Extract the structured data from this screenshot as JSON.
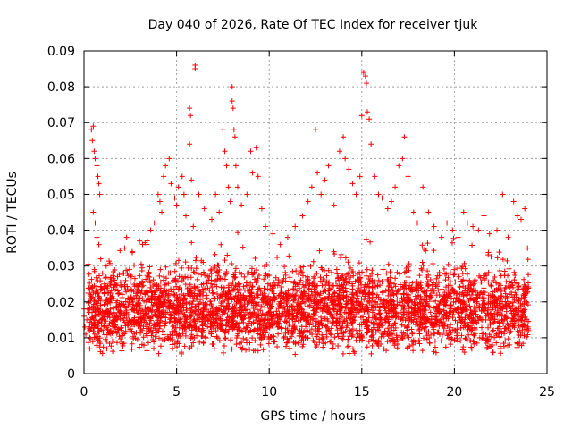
{
  "chart_data": {
    "type": "scatter",
    "title": "Day 040 of 2026, Rate Of TEC Index for receiver tjuk",
    "xlabel": "GPS time / hours",
    "ylabel": "ROTI / TECUs",
    "xlim": [
      0,
      25
    ],
    "ylim": [
      0,
      0.09
    ],
    "xticks": [
      0,
      5,
      10,
      15,
      20,
      25
    ],
    "yticks": [
      0,
      0.01,
      0.02,
      0.03,
      0.04,
      0.05,
      0.06,
      0.07,
      0.08,
      0.09
    ],
    "xtick_labels": [
      "0",
      "5",
      "10",
      "15",
      "20",
      "25"
    ],
    "ytick_labels": [
      "0",
      "0.01",
      "0.02",
      "0.03",
      "0.04",
      "0.05",
      "0.06",
      "0.07",
      "0.08",
      "0.09"
    ],
    "grid": true,
    "marker": "plus",
    "marker_color": "#ff0000",
    "series": [
      {
        "name": "ROTI",
        "points": [
          [
            0.0,
            0.018
          ],
          [
            0.0,
            0.016
          ],
          [
            0.05,
            0.013
          ],
          [
            0.1,
            0.011
          ],
          [
            0.15,
            0.015
          ],
          [
            0.3,
            0.012
          ],
          [
            0.4,
            0.068
          ],
          [
            0.45,
            0.065
          ],
          [
            0.5,
            0.069
          ],
          [
            0.55,
            0.062
          ],
          [
            0.6,
            0.06
          ],
          [
            0.7,
            0.058
          ],
          [
            0.75,
            0.055
          ],
          [
            0.8,
            0.053
          ],
          [
            0.85,
            0.05
          ],
          [
            0.5,
            0.045
          ],
          [
            0.6,
            0.042
          ],
          [
            0.7,
            0.038
          ],
          [
            0.8,
            0.036
          ],
          [
            0.9,
            0.032
          ],
          [
            1.0,
            0.028
          ],
          [
            1.1,
            0.025
          ],
          [
            1.2,
            0.03
          ],
          [
            1.3,
            0.02
          ],
          [
            2.2,
            0.035
          ],
          [
            2.3,
            0.038
          ],
          [
            2.6,
            0.034
          ],
          [
            3.0,
            0.037
          ],
          [
            3.4,
            0.036
          ],
          [
            3.6,
            0.04
          ],
          [
            3.8,
            0.042
          ],
          [
            4.0,
            0.05
          ],
          [
            4.1,
            0.048
          ],
          [
            4.2,
            0.045
          ],
          [
            4.3,
            0.055
          ],
          [
            4.4,
            0.058
          ],
          [
            4.6,
            0.06
          ],
          [
            4.7,
            0.053
          ],
          [
            4.9,
            0.049
          ],
          [
            5.0,
            0.047
          ],
          [
            5.1,
            0.052
          ],
          [
            5.3,
            0.055
          ],
          [
            5.4,
            0.05
          ],
          [
            5.5,
            0.044
          ],
          [
            5.7,
            0.074
          ],
          [
            5.75,
            0.072
          ],
          [
            5.7,
            0.064
          ],
          [
            5.8,
            0.054
          ],
          [
            5.9,
            0.041
          ],
          [
            6.0,
            0.086
          ],
          [
            6.0,
            0.085
          ],
          [
            6.2,
            0.05
          ],
          [
            6.5,
            0.046
          ],
          [
            6.9,
            0.043
          ],
          [
            7.1,
            0.05
          ],
          [
            7.3,
            0.045
          ],
          [
            7.5,
            0.068
          ],
          [
            7.6,
            0.062
          ],
          [
            7.7,
            0.058
          ],
          [
            7.8,
            0.052
          ],
          [
            7.9,
            0.048
          ],
          [
            8.0,
            0.08
          ],
          [
            8.0,
            0.076
          ],
          [
            8.05,
            0.074
          ],
          [
            8.1,
            0.068
          ],
          [
            8.15,
            0.066
          ],
          [
            8.2,
            0.058
          ],
          [
            8.3,
            0.052
          ],
          [
            8.5,
            0.047
          ],
          [
            8.8,
            0.05
          ],
          [
            9.0,
            0.062
          ],
          [
            9.1,
            0.056
          ],
          [
            9.3,
            0.063
          ],
          [
            9.4,
            0.055
          ],
          [
            9.6,
            0.046
          ],
          [
            9.8,
            0.041
          ],
          [
            10.2,
            0.039
          ],
          [
            10.6,
            0.036
          ],
          [
            11.0,
            0.038
          ],
          [
            11.4,
            0.041
          ],
          [
            11.8,
            0.044
          ],
          [
            12.1,
            0.048
          ],
          [
            12.3,
            0.052
          ],
          [
            12.5,
            0.068
          ],
          [
            12.6,
            0.056
          ],
          [
            12.8,
            0.05
          ],
          [
            13.0,
            0.054
          ],
          [
            13.2,
            0.058
          ],
          [
            13.5,
            0.047
          ],
          [
            13.8,
            0.062
          ],
          [
            14.0,
            0.066
          ],
          [
            14.1,
            0.06
          ],
          [
            14.3,
            0.057
          ],
          [
            14.5,
            0.053
          ],
          [
            14.7,
            0.05
          ],
          [
            14.9,
            0.055
          ],
          [
            15.0,
            0.072
          ],
          [
            15.1,
            0.084
          ],
          [
            15.2,
            0.083
          ],
          [
            15.25,
            0.081
          ],
          [
            15.3,
            0.073
          ],
          [
            15.4,
            0.071
          ],
          [
            15.5,
            0.064
          ],
          [
            15.7,
            0.055
          ],
          [
            15.9,
            0.05
          ],
          [
            16.1,
            0.049
          ],
          [
            16.4,
            0.046
          ],
          [
            16.6,
            0.048
          ],
          [
            16.8,
            0.052
          ],
          [
            17.0,
            0.058
          ],
          [
            17.2,
            0.06
          ],
          [
            17.3,
            0.066
          ],
          [
            17.5,
            0.055
          ],
          [
            17.8,
            0.045
          ],
          [
            18.0,
            0.042
          ],
          [
            18.3,
            0.052
          ],
          [
            18.6,
            0.045
          ],
          [
            18.9,
            0.041
          ],
          [
            19.3,
            0.038
          ],
          [
            19.6,
            0.042
          ],
          [
            19.9,
            0.04
          ],
          [
            20.2,
            0.038
          ],
          [
            20.5,
            0.045
          ],
          [
            20.7,
            0.042
          ],
          [
            21.0,
            0.041
          ],
          [
            21.3,
            0.04
          ],
          [
            21.6,
            0.044
          ],
          [
            21.9,
            0.039
          ],
          [
            22.3,
            0.04
          ],
          [
            22.6,
            0.05
          ],
          [
            22.9,
            0.038
          ],
          [
            23.2,
            0.048
          ],
          [
            23.4,
            0.044
          ],
          [
            23.6,
            0.043
          ],
          [
            23.8,
            0.046
          ],
          [
            23.95,
            0.035
          ],
          [
            24.0,
            0.012
          ]
        ],
        "dense_band": {
          "x_range": [
            0.2,
            24.0
          ],
          "y_low": 0.005,
          "y_high": 0.03,
          "count": 3600
        }
      }
    ]
  }
}
